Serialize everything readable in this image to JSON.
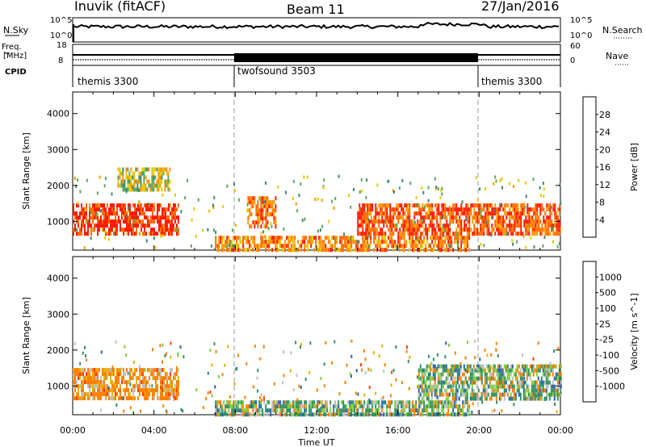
{
  "header": {
    "station": "Inuvik (fitACF)",
    "beam": "Beam 11",
    "date": "27/Jan/2016"
  },
  "summary_panels": {
    "nsky_label": "N.Sky",
    "nsky_tick_top": "10^5",
    "nsky_tick_bottom": "10^0",
    "nsearch_label": "N.Search",
    "freq_label_1": "Freq.",
    "freq_label_2": "[MHz]",
    "freq_tick_top": "18",
    "freq_tick_bottom": "8",
    "nave_tick_top": "60",
    "nave_tick_bottom": "0",
    "nave_label": "Nave",
    "cpid_label": "CPID",
    "cpid_segments": [
      "themis 3300",
      "twofsound 3503",
      "themis 3300"
    ]
  },
  "chart_data": [
    {
      "type": "heatmap",
      "title": "",
      "ylabel": "Slant Range [km]",
      "ylim": [
        200,
        4600
      ],
      "yticks": [
        "1000",
        "2000",
        "3000",
        "4000"
      ],
      "colorbar_label": "Power [dB]",
      "colorbar_ticks": [
        "4",
        "8",
        "12",
        "16",
        "20",
        "24",
        "28"
      ],
      "colorbar_colors": [
        "#1010ff",
        "#1c4fa8",
        "#3b8a70",
        "#5aa85a",
        "#e8c80a",
        "#ff9600",
        "#ff6a00",
        "#ff1a00"
      ],
      "dominant_features": [
        {
          "t_start_h": 0.0,
          "t_end_h": 5.2,
          "range_km": [
            700,
            1500
          ],
          "power_db": 28
        },
        {
          "t_start_h": 2.2,
          "t_end_h": 4.8,
          "range_km": [
            1900,
            2500
          ],
          "power_db": 16
        },
        {
          "t_start_h": 7.0,
          "t_end_h": 19.5,
          "range_km": [
            200,
            600
          ],
          "power_db": 22
        },
        {
          "t_start_h": 8.6,
          "t_end_h": 10.0,
          "range_km": [
            900,
            1700
          ],
          "power_db": 24
        },
        {
          "t_start_h": 14.0,
          "t_end_h": 24.0,
          "range_km": [
            700,
            1500
          ],
          "power_db": 26
        }
      ]
    },
    {
      "type": "heatmap",
      "title": "",
      "xlabel": "Time UT",
      "ylabel": "Slant Range [km]",
      "ylim": [
        200,
        4600
      ],
      "yticks": [
        "1000",
        "2000",
        "3000",
        "4000"
      ],
      "xticks": [
        "00:00",
        "04:00",
        "08:00",
        "12:00",
        "16:00",
        "20:00",
        "00:00"
      ],
      "colorbar_label": "Velocity [m s^-1]",
      "colorbar_ticks": [
        "1000",
        "500",
        "100",
        "25",
        "-25",
        "-100",
        "-500",
        "-1000"
      ],
      "colorbar_colors": [
        "#1020d8",
        "#2a60b0",
        "#309060",
        "#7cd040",
        "#c0c0c0",
        "#e8b000",
        "#ff8000",
        "#ff4000",
        "#ff0000"
      ],
      "dominant_features": [
        {
          "t_start_h": 0.0,
          "t_end_h": 5.2,
          "range_km": [
            700,
            1500
          ],
          "velocity": -300
        },
        {
          "t_start_h": 7.0,
          "t_end_h": 19.5,
          "range_km": [
            200,
            600
          ],
          "velocity": 80
        },
        {
          "t_start_h": 17.0,
          "t_end_h": 24.0,
          "range_km": [
            700,
            1600
          ],
          "velocity": 100
        }
      ]
    }
  ]
}
